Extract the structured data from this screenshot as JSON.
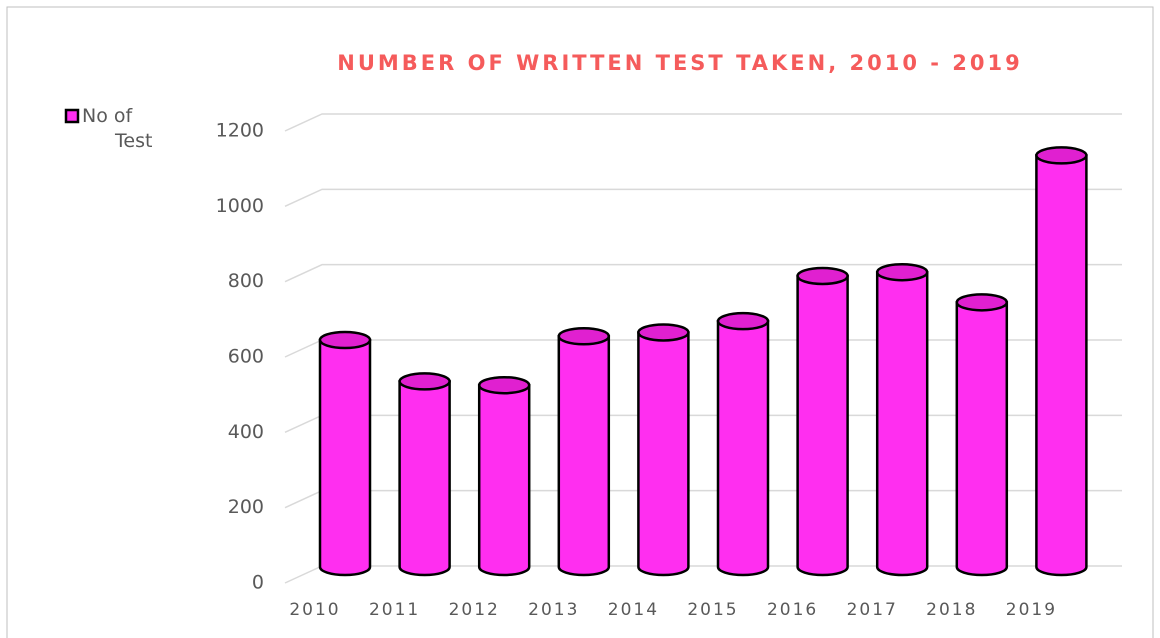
{
  "chart_data": {
    "type": "cylinder-bar",
    "title": "NUMBER OF WRITTEN TEST TAKEN, 2010 - 2019",
    "categories": [
      "2010",
      "2011",
      "2012",
      "2013",
      "2014",
      "2015",
      "2016",
      "2017",
      "2018",
      "2019"
    ],
    "series": [
      {
        "name": "No of Test",
        "color": "#ff2ef0",
        "values": [
          600,
          490,
          480,
          610,
          620,
          650,
          770,
          780,
          700,
          1090
        ]
      }
    ],
    "ylim": [
      0,
      1200
    ],
    "yticks": [
      0,
      200,
      400,
      600,
      800,
      1000,
      1200
    ],
    "grid": true,
    "legend": "top-left"
  }
}
